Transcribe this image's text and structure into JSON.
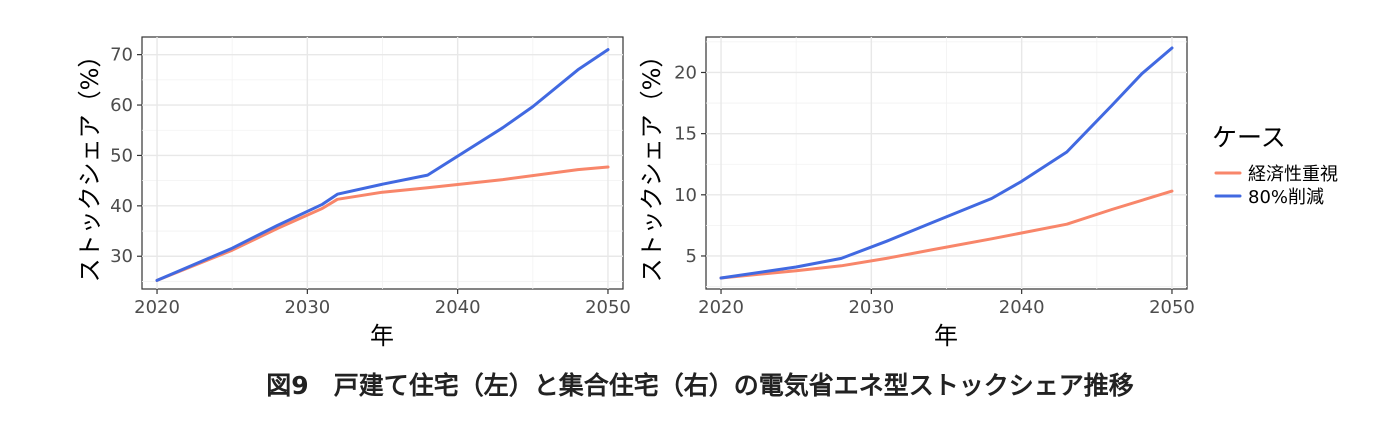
{
  "caption": "図9　戸建て住宅（左）と集合住宅（右）の電気省エネ型ストックシェア推移",
  "legend": {
    "title": "ケース",
    "items": [
      {
        "label": "経済性重視",
        "color": "#F8866A"
      },
      {
        "label": "80%削減",
        "color": "#4169E1"
      }
    ]
  },
  "chart_data": [
    {
      "type": "line",
      "title": "",
      "xlabel": "年",
      "ylabel": "ストックシェア（%）",
      "xlim": [
        2019,
        2051
      ],
      "ylim": [
        23.5,
        73.5
      ],
      "xticks": [
        2020,
        2030,
        2040,
        2050
      ],
      "yticks": [
        30,
        40,
        50,
        60,
        70
      ],
      "grid": true,
      "series": [
        {
          "name": "経済性重視",
          "color": "#F8866A",
          "x": [
            2020,
            2025,
            2028,
            2031,
            2032,
            2035,
            2038,
            2043,
            2048,
            2050
          ],
          "y": [
            25.2,
            31.2,
            35.5,
            39.5,
            41.3,
            42.7,
            43.6,
            45.2,
            47.2,
            47.7
          ]
        },
        {
          "name": "80%削減",
          "color": "#4169E1",
          "x": [
            2020,
            2025,
            2028,
            2031,
            2032,
            2035,
            2038,
            2043,
            2045,
            2048,
            2050
          ],
          "y": [
            25.2,
            31.6,
            36.1,
            40.3,
            42.3,
            44.3,
            46.1,
            55.5,
            59.7,
            67.0,
            71.0
          ]
        }
      ]
    },
    {
      "type": "line",
      "title": "",
      "xlabel": "年",
      "ylabel": "ストックシェア（%）",
      "xlim": [
        2019,
        2051
      ],
      "ylim": [
        2.3,
        22.9
      ],
      "xticks": [
        2020,
        2030,
        2040,
        2050
      ],
      "yticks": [
        5,
        10,
        15,
        20
      ],
      "grid": true,
      "series": [
        {
          "name": "経済性重視",
          "color": "#F8866A",
          "x": [
            2020,
            2025,
            2028,
            2031,
            2034,
            2038,
            2043,
            2046,
            2050
          ],
          "y": [
            3.2,
            3.8,
            4.2,
            4.8,
            5.5,
            6.4,
            7.6,
            8.8,
            10.3
          ]
        },
        {
          "name": "80%削減",
          "color": "#4169E1",
          "x": [
            2020,
            2025,
            2028,
            2031,
            2034,
            2038,
            2040,
            2043,
            2046,
            2048,
            2050
          ],
          "y": [
            3.2,
            4.1,
            4.8,
            6.2,
            7.7,
            9.7,
            11.1,
            13.5,
            17.3,
            19.9,
            22.0
          ]
        }
      ]
    }
  ]
}
